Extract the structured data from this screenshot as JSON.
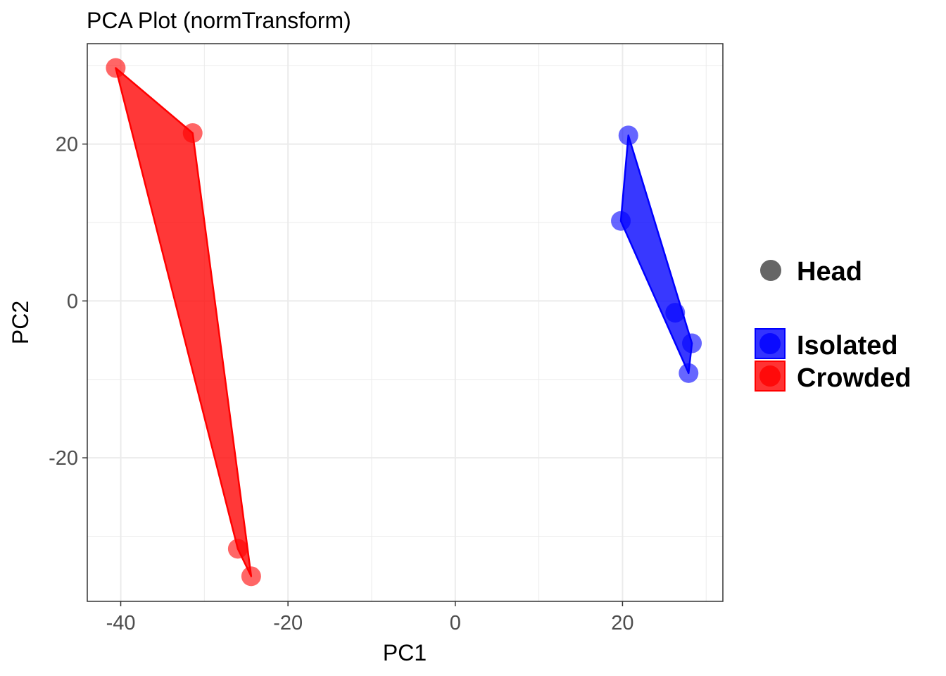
{
  "chart_data": {
    "type": "scatter",
    "title": "PCA Plot (normTransform)",
    "xlabel": "PC1",
    "ylabel": "PC2",
    "xlim": [
      -44,
      32
    ],
    "ylim": [
      -38.3,
      32.8
    ],
    "xticks": [
      -40,
      -20,
      0,
      20
    ],
    "yticks": [
      -20,
      0,
      20
    ],
    "xtick_labels": [
      "-40",
      "-20",
      "0",
      "20"
    ],
    "ytick_labels": [
      "-20",
      "0",
      "20"
    ],
    "grid": true,
    "legend_position": "right",
    "shape_legend": {
      "label": "Head",
      "color": "#666666"
    },
    "series": [
      {
        "name": "Isolated",
        "color": "#0000ff",
        "points": [
          {
            "x": 20.7,
            "y": 21.1
          },
          {
            "x": 19.8,
            "y": 10.2
          },
          {
            "x": 26.3,
            "y": -1.5
          },
          {
            "x": 28.3,
            "y": -5.4
          },
          {
            "x": 27.9,
            "y": -9.2
          }
        ]
      },
      {
        "name": "Crowded",
        "color": "#ff0000",
        "points": [
          {
            "x": -40.6,
            "y": 29.7
          },
          {
            "x": -31.4,
            "y": 21.4
          },
          {
            "x": -26.0,
            "y": -31.6
          },
          {
            "x": -24.4,
            "y": -35.1
          }
        ]
      }
    ]
  }
}
